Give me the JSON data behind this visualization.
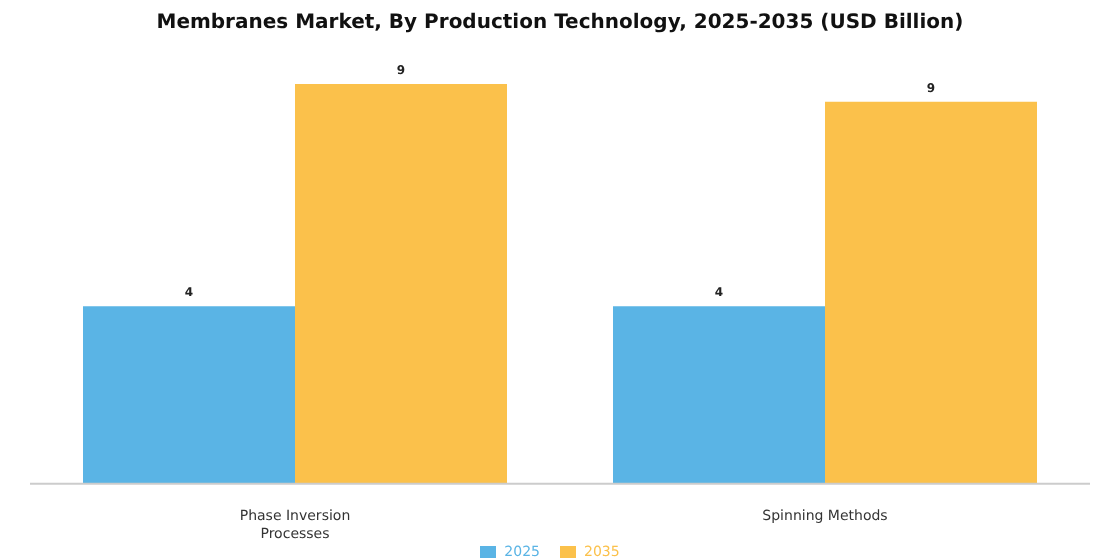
{
  "chart_data": {
    "type": "bar",
    "title": "Membranes Market, By Production Technology, 2025-2035 (USD Billion)",
    "categories": [
      "Phase Inversion Processes",
      "Spinning Methods"
    ],
    "series": [
      {
        "name": "2025",
        "color": "#5ab4e5",
        "values": [
          4.0,
          4.0
        ],
        "value_labels": [
          "4",
          "4"
        ]
      },
      {
        "name": "2035",
        "color": "#fbc14b",
        "values": [
          9.0,
          8.6
        ],
        "value_labels": [
          "9",
          "9"
        ]
      }
    ],
    "legend": "bottom",
    "grid": false
  }
}
